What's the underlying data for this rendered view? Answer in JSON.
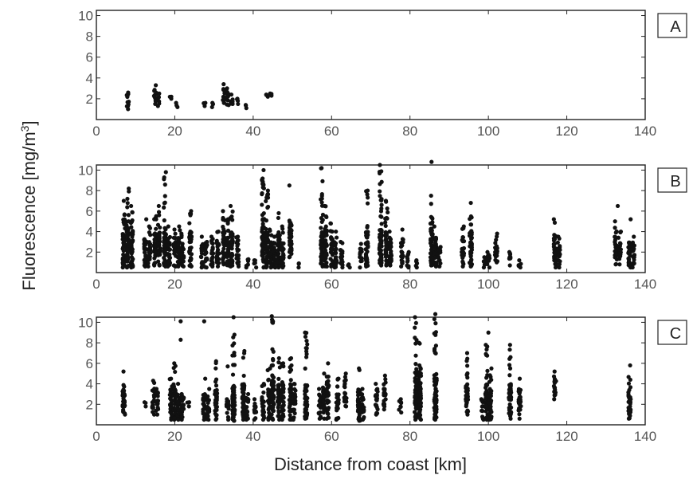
{
  "chart_data": {
    "type": "scatter",
    "ylabel_main": "Fluorescence [mg/m",
    "ylabel_sup": "3",
    "ylabel_end": "]",
    "xlabel": "Distance from coast [km]",
    "xlim": [
      0,
      140
    ],
    "ylim": [
      0,
      10.5
    ],
    "xticks": [
      0,
      20,
      40,
      60,
      80,
      100,
      120,
      140
    ],
    "yticks": [
      2,
      4,
      6,
      8,
      10
    ],
    "marker_color": "#111111",
    "panels": [
      {
        "label": "A",
        "columns": [
          [
            8,
            1.0,
            2.6,
            2.6
          ],
          [
            15,
            1.5,
            3.3,
            2.4
          ],
          [
            16,
            1.3,
            2.5,
            2.0
          ],
          [
            19,
            2.0,
            2.2,
            2.1
          ],
          [
            20.5,
            1.2,
            1.6,
            1.4
          ],
          [
            27.5,
            1.3,
            1.6,
            1.5
          ],
          [
            29.5,
            1.2,
            1.6,
            1.4
          ],
          [
            32.5,
            1.6,
            3.4,
            2.6
          ],
          [
            33.5,
            1.4,
            3.0,
            2.2
          ],
          [
            34.5,
            1.5,
            2.4,
            2.0
          ],
          [
            36,
            1.5,
            2.0,
            1.8
          ],
          [
            38,
            1.1,
            1.4,
            1.2
          ],
          [
            43.5,
            2.2,
            2.4,
            2.3
          ],
          [
            44.5,
            2.3,
            2.5,
            2.4
          ]
        ],
        "outliers": []
      },
      {
        "label": "B",
        "columns": [
          [
            7,
            0.5,
            7.0,
            3.0
          ],
          [
            8,
            0.5,
            8.2,
            3.5
          ],
          [
            9,
            0.5,
            6.5,
            3.0
          ],
          [
            12.5,
            0.6,
            5.2,
            2.5
          ],
          [
            13.5,
            0.6,
            4.5,
            2.2
          ],
          [
            15,
            0.7,
            5.5,
            2.5
          ],
          [
            16,
            0.7,
            6.5,
            3.0
          ],
          [
            17.5,
            0.6,
            9.8,
            3.0
          ],
          [
            18.5,
            0.6,
            4.5,
            2.0
          ],
          [
            20,
            0.6,
            4.2,
            2.0
          ],
          [
            21,
            0.6,
            4.5,
            2.2
          ],
          [
            22,
            0.6,
            3.8,
            2.0
          ],
          [
            24,
            0.6,
            6.0,
            3.0
          ],
          [
            27,
            0.5,
            3.5,
            1.8
          ],
          [
            28,
            0.5,
            3.0,
            1.8
          ],
          [
            29.5,
            0.6,
            3.5,
            1.8
          ],
          [
            31,
            0.6,
            4.0,
            2.0
          ],
          [
            32.5,
            0.8,
            6.0,
            3.0
          ],
          [
            33.5,
            0.7,
            5.2,
            2.5
          ],
          [
            34.5,
            0.6,
            6.5,
            3.0
          ],
          [
            36,
            0.6,
            3.5,
            2.0
          ],
          [
            38.5,
            0.5,
            1.3,
            0.8
          ],
          [
            40.5,
            0.5,
            1.2,
            0.8
          ],
          [
            42.5,
            0.5,
            10.0,
            3.5
          ],
          [
            43.5,
            0.5,
            8.0,
            3.0
          ],
          [
            44.5,
            0.5,
            4.2,
            2.0
          ],
          [
            45.5,
            0.5,
            3.5,
            2.0
          ],
          [
            46.5,
            0.5,
            5.8,
            2.5
          ],
          [
            47.5,
            0.5,
            4.5,
            2.0
          ],
          [
            49.5,
            1.5,
            8.5,
            4.0
          ],
          [
            51.5,
            0.5,
            0.9,
            0.7
          ],
          [
            57.5,
            0.6,
            10.2,
            3.0
          ],
          [
            58.5,
            0.6,
            6.5,
            3.0
          ],
          [
            60,
            0.6,
            4.8,
            2.5
          ],
          [
            61,
            0.5,
            4.0,
            2.0
          ],
          [
            62.5,
            0.5,
            3.0,
            1.8
          ],
          [
            64.5,
            0.5,
            0.8,
            0.6
          ],
          [
            67.5,
            0.5,
            2.8,
            1.5
          ],
          [
            69,
            0.6,
            8.0,
            3.0
          ],
          [
            72.5,
            0.7,
            10.5,
            3.5
          ],
          [
            74,
            0.7,
            7.0,
            3.0
          ],
          [
            75,
            0.7,
            4.0,
            2.0
          ],
          [
            78,
            0.6,
            4.2,
            2.0
          ],
          [
            79.5,
            0.5,
            2.0,
            1.2
          ],
          [
            81.5,
            0.5,
            1.2,
            0.8
          ],
          [
            85.5,
            0.7,
            7.5,
            3.5
          ],
          [
            86.5,
            0.6,
            4.5,
            2.5
          ],
          [
            87.5,
            0.6,
            2.5,
            1.5
          ],
          [
            93.5,
            0.6,
            4.5,
            2.5
          ],
          [
            95.5,
            0.6,
            6.8,
            3.0
          ],
          [
            99,
            0.5,
            1.5,
            0.9
          ],
          [
            100,
            0.5,
            2.0,
            1.0
          ],
          [
            102,
            1.0,
            3.8,
            2.0
          ],
          [
            105.5,
            0.7,
            2.0,
            1.2
          ],
          [
            108,
            0.5,
            1.2,
            0.8
          ],
          [
            117,
            0.5,
            5.2,
            2.0
          ],
          [
            118,
            0.5,
            3.5,
            1.8
          ],
          [
            132.5,
            0.8,
            5.0,
            2.5
          ],
          [
            133.5,
            0.8,
            4.0,
            2.0
          ],
          [
            136,
            0.5,
            5.2,
            2.0
          ],
          [
            137,
            0.5,
            3.5,
            1.8
          ]
        ],
        "outliers": [
          [
            85.5,
            10.8
          ],
          [
            133,
            6.5
          ]
        ]
      },
      {
        "label": "C",
        "columns": [
          [
            7,
            1.0,
            5.2,
            3.0
          ],
          [
            12.5,
            1.8,
            2.2,
            2.0
          ],
          [
            14.5,
            1.0,
            4.3,
            2.5
          ],
          [
            15.5,
            1.0,
            3.5,
            2.2
          ],
          [
            19,
            0.5,
            4.5,
            2.0
          ],
          [
            20,
            0.5,
            6.0,
            2.5
          ],
          [
            21,
            0.5,
            4.0,
            2.0
          ],
          [
            22,
            0.5,
            3.0,
            1.8
          ],
          [
            23.5,
            1.8,
            2.2,
            2.0
          ],
          [
            27.5,
            0.5,
            4.5,
            2.0
          ],
          [
            28.5,
            0.5,
            3.5,
            2.0
          ],
          [
            30.5,
            0.5,
            6.2,
            2.5
          ],
          [
            33.5,
            0.5,
            2.5,
            1.5
          ],
          [
            35,
            0.4,
            10.5,
            3.0
          ],
          [
            37.5,
            0.5,
            7.2,
            3.0
          ],
          [
            38.5,
            0.5,
            3.0,
            1.8
          ],
          [
            40.5,
            0.5,
            2.5,
            1.5
          ],
          [
            42.5,
            0.5,
            4.0,
            2.0
          ],
          [
            44,
            0.5,
            5.5,
            2.5
          ],
          [
            45,
            0.5,
            10.6,
            3.5
          ],
          [
            46.5,
            0.5,
            6.5,
            3.0
          ],
          [
            47.5,
            0.5,
            6.0,
            3.0
          ],
          [
            49.5,
            0.5,
            6.5,
            3.0
          ],
          [
            50.5,
            0.5,
            4.0,
            2.0
          ],
          [
            53.5,
            0.6,
            9.0,
            3.0
          ],
          [
            57,
            0.6,
            3.5,
            2.0
          ],
          [
            58,
            0.6,
            5.0,
            2.5
          ],
          [
            59,
            0.6,
            6.0,
            3.0
          ],
          [
            61.5,
            0.5,
            4.5,
            2.0
          ],
          [
            63.5,
            1.8,
            5.0,
            3.0
          ],
          [
            67,
            0.4,
            5.5,
            2.5
          ],
          [
            68,
            0.5,
            3.5,
            2.0
          ],
          [
            71.5,
            1.0,
            4.0,
            2.5
          ],
          [
            73.5,
            1.5,
            4.8,
            2.5
          ],
          [
            77.5,
            1.2,
            2.5,
            1.8
          ],
          [
            81.5,
            0.5,
            10.5,
            3.5
          ],
          [
            82.5,
            0.5,
            8.0,
            3.0
          ],
          [
            86.5,
            0.5,
            10.8,
            4.0
          ],
          [
            94.5,
            1.0,
            7.0,
            3.0
          ],
          [
            98.5,
            0.5,
            2.5,
            1.5
          ],
          [
            99.5,
            0.5,
            7.8,
            3.0
          ],
          [
            100.5,
            0.5,
            5.5,
            2.5
          ],
          [
            105.5,
            0.6,
            7.8,
            3.0
          ],
          [
            108,
            0.6,
            4.5,
            2.5
          ],
          [
            117,
            2.5,
            5.2,
            3.5
          ],
          [
            136,
            0.6,
            5.8,
            2.5
          ]
        ],
        "outliers": [
          [
            21.5,
            10.1
          ],
          [
            21.5,
            8.3
          ],
          [
            27.5,
            10.1
          ],
          [
            33.5,
            5.7
          ],
          [
            100,
            9.0
          ]
        ]
      }
    ]
  }
}
